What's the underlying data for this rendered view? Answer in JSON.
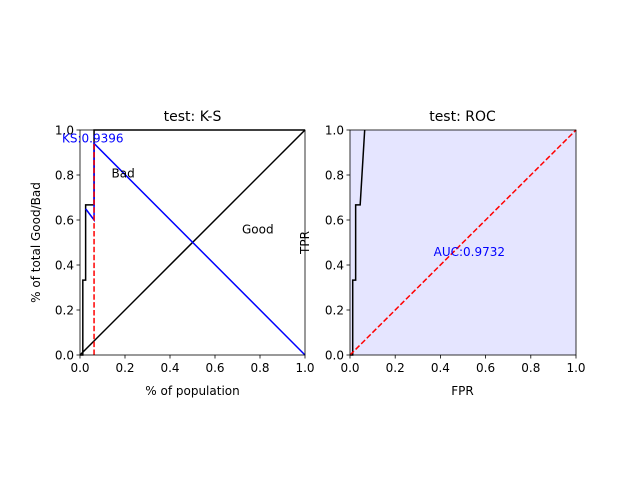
{
  "chart_data": [
    {
      "type": "line",
      "title": "test: K-S",
      "xlabel": "% of population",
      "ylabel": "% of total Good/Bad",
      "xlim": [
        0,
        1
      ],
      "ylim": [
        0,
        1
      ],
      "xticks": [
        "0.0",
        "0.2",
        "0.4",
        "0.6",
        "0.8",
        "1.0"
      ],
      "yticks": [
        "0.0",
        "0.2",
        "0.4",
        "0.6",
        "0.8",
        "1.0"
      ],
      "grid": false,
      "series": [
        {
          "name": "Bad",
          "color": "#000000",
          "style": "solid",
          "x": [
            0,
            0.0125,
            0.0125,
            0.025,
            0.025,
            0.0625,
            0.0625,
            1.0
          ],
          "y": [
            0,
            0.0,
            0.333,
            0.333,
            0.667,
            0.667,
            1.0,
            1.0
          ]
        },
        {
          "name": "Good",
          "color": "#000000",
          "style": "solid",
          "x": [
            0,
            1.0
          ],
          "y": [
            0,
            1.0
          ]
        },
        {
          "name": "",
          "color": "#0000ff",
          "style": "solid",
          "x": [
            0.025,
            0.0625,
            0.0625,
            1.0
          ],
          "y": [
            0.65,
            0.6,
            0.94,
            0.0
          ]
        },
        {
          "name": "",
          "color": "#ff0000",
          "style": "dashed",
          "x": [
            0.0625,
            0.0625
          ],
          "y": [
            0.0,
            0.95
          ]
        }
      ],
      "annotations": [
        {
          "text": "KS:0.9396",
          "x": -0.08,
          "y": 0.965,
          "color": "#0000ff"
        },
        {
          "text": "Bad",
          "x": 0.14,
          "y": 0.81,
          "color": "#000000"
        },
        {
          "text": "Good",
          "x": 0.72,
          "y": 0.56,
          "color": "#000000"
        }
      ]
    },
    {
      "type": "area",
      "title": "test: ROC",
      "xlabel": "FPR",
      "ylabel": "TPR",
      "xlim": [
        0,
        1
      ],
      "ylim": [
        0,
        1
      ],
      "xticks": [
        "0.0",
        "0.2",
        "0.4",
        "0.6",
        "0.8",
        "1.0"
      ],
      "yticks": [
        "0.0",
        "0.2",
        "0.4",
        "0.6",
        "0.8",
        "1.0"
      ],
      "grid": false,
      "fill_color": "#e5e5ff",
      "series": [
        {
          "name": "ROC",
          "color": "#000000",
          "style": "solid",
          "x": [
            0.0,
            0.012,
            0.012,
            0.025,
            0.025,
            0.045,
            0.065
          ],
          "y": [
            0.0,
            0.0,
            0.333,
            0.333,
            0.667,
            0.667,
            1.0
          ]
        },
        {
          "name": "",
          "color": "#ff0000",
          "style": "dashed",
          "x": [
            0,
            1.0
          ],
          "y": [
            0,
            1.0
          ]
        }
      ],
      "annotations": [
        {
          "text": "AUC:0.9732",
          "x": 0.37,
          "y": 0.46,
          "color": "#0000ff"
        }
      ]
    }
  ]
}
